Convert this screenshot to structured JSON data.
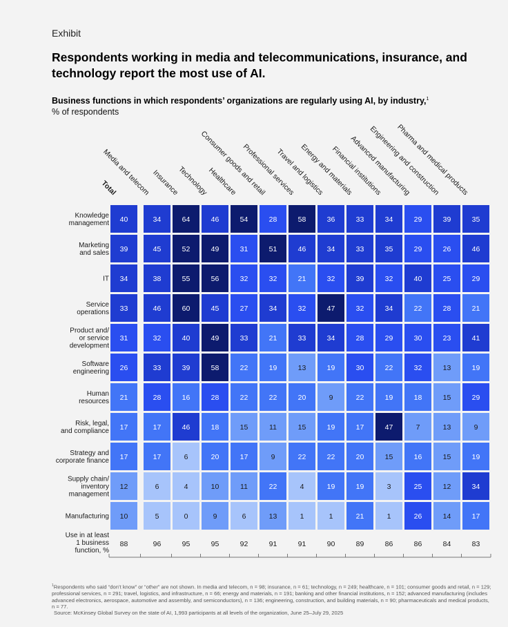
{
  "exhibit_label": "Exhibit",
  "title": "Respondents working in media and telecommunications, insurance, and technology report the most use of AI.",
  "subtitle": "Business functions in which respondents’ organizations are regularly using AI, by industry,",
  "subtitle_footnote_mark": "1",
  "unit_label": "% of respondents",
  "colors": {
    "scale": [
      "#a7c4fb",
      "#6f9cf9",
      "#4275f7",
      "#2a4ef0",
      "#1f3cd1",
      "#0d1b6e"
    ],
    "text_light": "#ffffff",
    "text_dark": "#1a1a1a",
    "background": "#f3f3f3"
  },
  "chart_data": {
    "type": "heatmap",
    "columns": [
      "Total",
      "Media and telecom",
      "Insurance",
      "Technology",
      "Healthcare",
      "Consumer goods and retail",
      "Professional services",
      "Travel and logistics",
      "Energy and materials",
      "Financial institutions",
      "Advanced manufacturing",
      "Engineering and construction",
      "Pharma and medical products"
    ],
    "rows": [
      {
        "label": "Knowledge management",
        "lines": [
          "Knowledge",
          "management"
        ],
        "values": [
          40,
          34,
          64,
          46,
          54,
          28,
          58,
          36,
          33,
          34,
          29,
          39,
          35
        ]
      },
      {
        "label": "Marketing and sales",
        "lines": [
          "Marketing",
          "and sales"
        ],
        "values": [
          39,
          45,
          52,
          49,
          31,
          51,
          46,
          34,
          33,
          35,
          29,
          26,
          46
        ]
      },
      {
        "label": "IT",
        "lines": [
          "IT"
        ],
        "values": [
          34,
          38,
          55,
          56,
          32,
          32,
          21,
          32,
          39,
          32,
          40,
          25,
          29
        ]
      },
      {
        "label": "Service operations",
        "lines": [
          "Service",
          "operations"
        ],
        "values": [
          33,
          46,
          60,
          45,
          27,
          34,
          32,
          47,
          32,
          34,
          22,
          28,
          21
        ]
      },
      {
        "label": "Product and/or service development",
        "lines": [
          "Product and/",
          "or service",
          "development"
        ],
        "values": [
          31,
          32,
          40,
          49,
          33,
          21,
          33,
          34,
          28,
          29,
          30,
          23,
          41
        ]
      },
      {
        "label": "Software engineering",
        "lines": [
          "Software",
          "engineering"
        ],
        "values": [
          26,
          33,
          39,
          58,
          22,
          19,
          13,
          19,
          30,
          22,
          32,
          13,
          19
        ]
      },
      {
        "label": "Human resources",
        "lines": [
          "Human",
          "resources"
        ],
        "values": [
          21,
          28,
          16,
          28,
          22,
          22,
          20,
          9,
          22,
          19,
          18,
          15,
          29
        ]
      },
      {
        "label": "Risk, legal, and compliance",
        "lines": [
          "Risk, legal,",
          "and compliance"
        ],
        "values": [
          17,
          17,
          46,
          18,
          15,
          11,
          15,
          19,
          17,
          47,
          7,
          13,
          9
        ]
      },
      {
        "label": "Strategy and corporate finance",
        "lines": [
          "Strategy and",
          "corporate finance"
        ],
        "values": [
          17,
          17,
          6,
          20,
          17,
          9,
          22,
          22,
          20,
          15,
          16,
          15,
          19
        ]
      },
      {
        "label": "Supply chain/inventory management",
        "lines": [
          "Supply chain/",
          "inventory",
          "management"
        ],
        "values": [
          12,
          6,
          4,
          10,
          11,
          22,
          4,
          19,
          19,
          3,
          25,
          12,
          34
        ]
      },
      {
        "label": "Manufacturing",
        "lines": [
          "Manufacturing"
        ],
        "values": [
          10,
          5,
          0,
          9,
          6,
          13,
          1,
          1,
          21,
          1,
          26,
          14,
          17
        ]
      }
    ],
    "totals_row": {
      "label": "Use in at least 1 business function, %",
      "lines": [
        "Use in at least",
        "1 business",
        "function, %"
      ],
      "values": [
        88,
        96,
        95,
        95,
        92,
        91,
        91,
        90,
        89,
        86,
        86,
        84,
        83
      ]
    },
    "color_thresholds": [
      6,
      15,
      22,
      32,
      46
    ]
  },
  "footnote_mark": "1",
  "footnote": "Respondents who said “don’t know” or “other” are not shown. In media and telecom, n = 98; insurance, n = 61; technology, n = 249; healthcare, n = 101; consumer goods and retail, n = 129; professional services, n = 291; travel, logistics, and infrastructure, n = 66; energy and materials, n = 191; banking and other financial institutions, n = 152; advanced manufacturing (includes advanced electronics, aerospace, automotive and assembly, and semiconductors), n = 136; engineering, construction, and building materials, n = 90; pharmaceuticals and medical products, n = 77.",
  "source": "Source: McKinsey Global Survey on the state of AI, 1,993 participants at all levels of the organization, June 25–July 29, 2025"
}
